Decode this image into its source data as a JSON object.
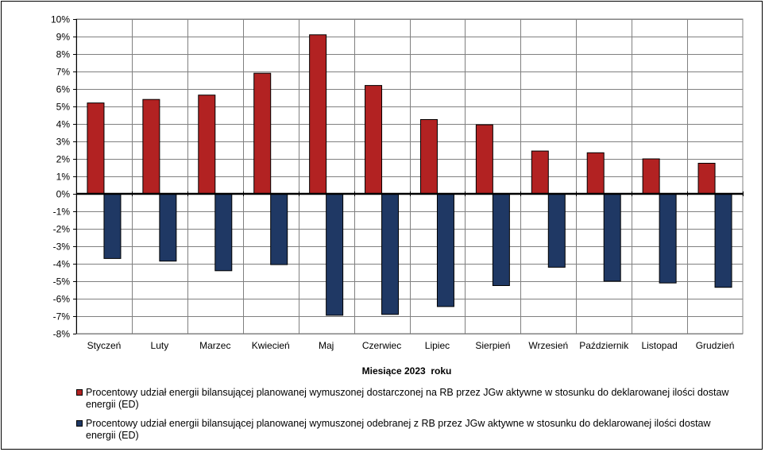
{
  "chart_data": {
    "type": "bar",
    "categories": [
      "Styczeń",
      "Luty",
      "Marzec",
      "Kwiecień",
      "Maj",
      "Czerwiec",
      "Lipiec",
      "Sierpień",
      "Wrzesień",
      "Październik",
      "Listopad",
      "Grudzień"
    ],
    "series": [
      {
        "name": "Procentowy udział energii bilansującej planowanej wymuszonej dostarczonej na RB przez JGw aktywne w stosunku do deklarowanej ilości dostaw energii (ED)",
        "color": "#B22222",
        "values": [
          5.2,
          5.4,
          5.65,
          6.9,
          9.1,
          6.2,
          4.25,
          3.95,
          2.45,
          2.35,
          2.0,
          1.75
        ]
      },
      {
        "name": "Procentowy udział energii bilansującej planowanej wymuszonej odebranej z RB przez JGw aktywne w stosunku do deklarowanej ilości dostaw energii (ED)",
        "color": "#1F3864",
        "values": [
          -3.7,
          -3.85,
          -4.4,
          -4.05,
          -6.95,
          -6.9,
          -6.45,
          -5.25,
          -4.2,
          -5.0,
          -5.1,
          -5.35
        ]
      }
    ],
    "xlabel": "Miesiące 2023  roku",
    "ylim": [
      -8,
      10
    ],
    "yticks": [
      "-8%",
      "-7%",
      "-6%",
      "-5%",
      "-4%",
      "-3%",
      "-2%",
      "-1%",
      "0%",
      "1%",
      "2%",
      "3%",
      "4%",
      "5%",
      "6%",
      "7%",
      "8%",
      "9%",
      "10%"
    ],
    "grid": true,
    "legend_position": "bottom"
  }
}
